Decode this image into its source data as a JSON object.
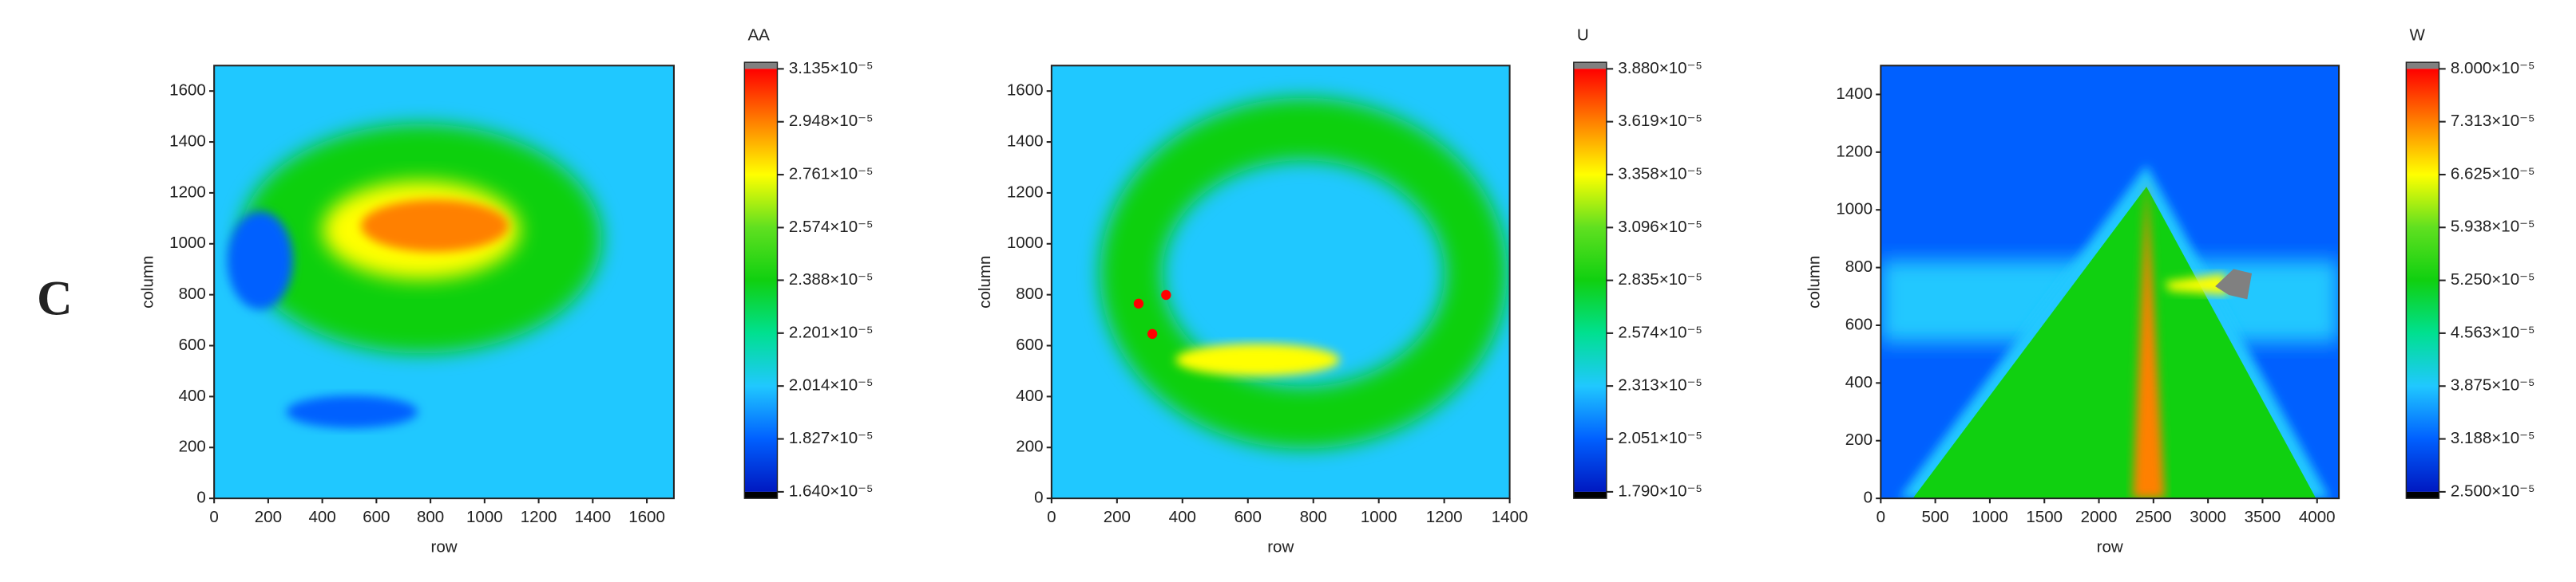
{
  "panel_label": "C",
  "chart_data": [
    {
      "type": "contour",
      "title": "AA",
      "xlabel": "row",
      "ylabel": "column",
      "xlim": [
        0,
        1700
      ],
      "xticks": [
        0,
        200,
        400,
        600,
        800,
        1000,
        1200,
        1400,
        1600
      ],
      "ylim": [
        0,
        1700
      ],
      "yticks": [
        0,
        200,
        400,
        600,
        800,
        1000,
        1200,
        1400,
        1600
      ],
      "clim": [
        1.64e-05,
        3.135e-05
      ],
      "cticks": [
        {
          "value": 3.135e-05,
          "label": "3.135×10⁻⁵"
        },
        {
          "value": 2.948e-05,
          "label": "2.948×10⁻⁵"
        },
        {
          "value": 2.761e-05,
          "label": "2.761×10⁻⁵"
        },
        {
          "value": 2.574e-05,
          "label": "2.574×10⁻⁵"
        },
        {
          "value": 2.388e-05,
          "label": "2.388×10⁻⁵"
        },
        {
          "value": 2.201e-05,
          "label": "2.201×10⁻⁵"
        },
        {
          "value": 2.014e-05,
          "label": "2.014×10⁻⁵"
        },
        {
          "value": 1.827e-05,
          "label": "1.827×10⁻⁵"
        },
        {
          "value": 1.64e-05,
          "label": "1.640×10⁻⁵"
        }
      ]
    },
    {
      "type": "contour",
      "title": "U",
      "xlabel": "row",
      "ylabel": "column",
      "xlim": [
        0,
        1400
      ],
      "xticks": [
        0,
        200,
        400,
        600,
        800,
        1000,
        1200,
        1400
      ],
      "ylim": [
        0,
        1700
      ],
      "yticks": [
        0,
        200,
        400,
        600,
        800,
        1000,
        1200,
        1400,
        1600
      ],
      "clim": [
        1.79e-05,
        3.88e-05
      ],
      "cticks": [
        {
          "value": 3.88e-05,
          "label": "3.880×10⁻⁵"
        },
        {
          "value": 3.619e-05,
          "label": "3.619×10⁻⁵"
        },
        {
          "value": 3.358e-05,
          "label": "3.358×10⁻⁵"
        },
        {
          "value": 3.096e-05,
          "label": "3.096×10⁻⁵"
        },
        {
          "value": 2.835e-05,
          "label": "2.835×10⁻⁵"
        },
        {
          "value": 2.574e-05,
          "label": "2.574×10⁻⁵"
        },
        {
          "value": 2.313e-05,
          "label": "2.313×10⁻⁵"
        },
        {
          "value": 2.051e-05,
          "label": "2.051×10⁻⁵"
        },
        {
          "value": 1.79e-05,
          "label": "1.790×10⁻⁵"
        }
      ]
    },
    {
      "type": "contour",
      "title": "W",
      "xlabel": "row",
      "ylabel": "column",
      "xlim": [
        0,
        4200
      ],
      "xticks": [
        0,
        500,
        1000,
        1500,
        2000,
        2500,
        3000,
        3500,
        4000
      ],
      "ylim": [
        0,
        1500
      ],
      "yticks": [
        0,
        200,
        400,
        600,
        800,
        1000,
        1200,
        1400
      ],
      "clim": [
        2.5e-05,
        8e-05
      ],
      "cticks": [
        {
          "value": 8e-05,
          "label": "8.000×10⁻⁵"
        },
        {
          "value": 7.313e-05,
          "label": "7.313×10⁻⁵"
        },
        {
          "value": 6.625e-05,
          "label": "6.625×10⁻⁵"
        },
        {
          "value": 5.938e-05,
          "label": "5.938×10⁻⁵"
        },
        {
          "value": 5.25e-05,
          "label": "5.250×10⁻⁵"
        },
        {
          "value": 4.563e-05,
          "label": "4.563×10⁻⁵"
        },
        {
          "value": 3.875e-05,
          "label": "3.875×10⁻⁵"
        },
        {
          "value": 3.188e-05,
          "label": "3.188×10⁻⁵"
        },
        {
          "value": 2.5e-05,
          "label": "2.500×10⁻⁵"
        }
      ]
    }
  ],
  "colormap": [
    "#0018c0",
    "#0060ff",
    "#20c8ff",
    "#00e090",
    "#10d010",
    "#60e020",
    "#ffff00",
    "#ff8000",
    "#ff0000"
  ],
  "under_color": "#000000",
  "over_color": "#808080"
}
